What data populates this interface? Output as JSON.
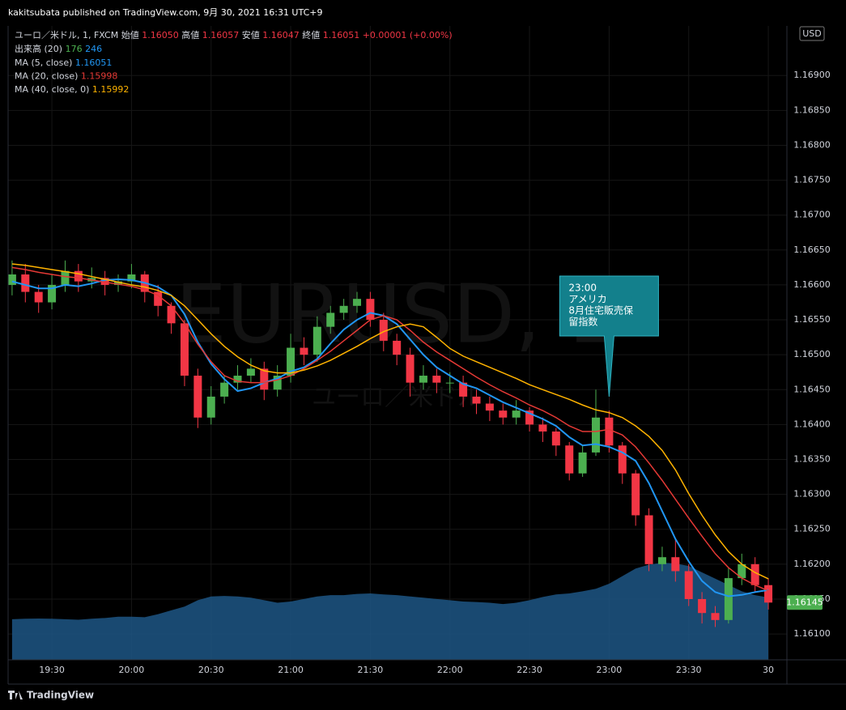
{
  "header": {
    "text": "kakitsubata published on TradingView.com, 9月 30, 2021 16:31 UTC+9"
  },
  "footer": {
    "brand": "TradingView"
  },
  "chart_data": {
    "type": "candlestick",
    "legend": {
      "symbol": "ユーロ／米ドル, 1, FXCM",
      "items": [
        {
          "label": "始値",
          "value": "1.16050"
        },
        {
          "label": "高値",
          "value": "1.16057"
        },
        {
          "label": "安値",
          "value": "1.16047"
        },
        {
          "label": "終値",
          "value": "1.16051"
        }
      ],
      "change": "+0.00001 (+0.00%)"
    },
    "watermark": "EURUSD, 1",
    "watermark_sub": "ユーロ／米ドル",
    "currency": "USD",
    "x": [
      1155,
      1160,
      1165,
      1170,
      1175,
      1180,
      1185,
      1190,
      1195,
      1200,
      1205,
      1210,
      1215,
      1220,
      1225,
      1230,
      1235,
      1240,
      1245,
      1250,
      1255,
      1260,
      1265,
      1270,
      1275,
      1280,
      1285,
      1290,
      1295,
      1300,
      1305,
      1310,
      1315,
      1320,
      1325,
      1330,
      1335,
      1340,
      1345,
      1350,
      1355,
      1360,
      1365,
      1370,
      1375,
      1380,
      1385,
      1390,
      1395,
      1400,
      1405,
      1410,
      1415,
      1420,
      1425,
      1430,
      1435,
      1440
    ],
    "open": [
      1.166,
      1.16615,
      1.1659,
      1.16575,
      1.166,
      1.1662,
      1.16605,
      1.1661,
      1.166,
      1.16605,
      1.16615,
      1.1659,
      1.1657,
      1.16545,
      1.1647,
      1.1641,
      1.1644,
      1.1646,
      1.1647,
      1.1648,
      1.1645,
      1.1647,
      1.1651,
      1.165,
      1.1654,
      1.1656,
      1.1657,
      1.1658,
      1.1655,
      1.1652,
      1.165,
      1.1646,
      1.1647,
      1.1646,
      1.1646,
      1.1644,
      1.1643,
      1.1642,
      1.1641,
      1.1642,
      1.164,
      1.1639,
      1.1637,
      1.1633,
      1.1636,
      1.1641,
      1.1637,
      1.1633,
      1.1627,
      1.162,
      1.1621,
      1.1619,
      1.1615,
      1.1613,
      1.1612,
      1.1618,
      1.162,
      1.1617
    ],
    "high": [
      1.16635,
      1.1663,
      1.166,
      1.16615,
      1.16635,
      1.1663,
      1.16625,
      1.1662,
      1.16615,
      1.1663,
      1.1662,
      1.166,
      1.16575,
      1.1655,
      1.1648,
      1.16455,
      1.1647,
      1.16485,
      1.16495,
      1.1649,
      1.16485,
      1.1653,
      1.16525,
      1.16555,
      1.1657,
      1.1658,
      1.1659,
      1.1659,
      1.1656,
      1.1653,
      1.1651,
      1.16485,
      1.1648,
      1.16475,
      1.1647,
      1.1645,
      1.1644,
      1.1643,
      1.16435,
      1.16425,
      1.1641,
      1.16395,
      1.16375,
      1.1637,
      1.1645,
      1.1642,
      1.16375,
      1.16335,
      1.1628,
      1.16225,
      1.16235,
      1.162,
      1.1616,
      1.1614,
      1.16195,
      1.16215,
      1.1621,
      1.1618
    ],
    "low": [
      1.16585,
      1.16575,
      1.1656,
      1.16565,
      1.1659,
      1.1659,
      1.16595,
      1.16585,
      1.1659,
      1.16595,
      1.16575,
      1.16555,
      1.1653,
      1.16455,
      1.16395,
      1.164,
      1.1643,
      1.1645,
      1.1646,
      1.16435,
      1.1644,
      1.1646,
      1.16485,
      1.1649,
      1.1653,
      1.1655,
      1.1656,
      1.1654,
      1.16505,
      1.16485,
      1.1644,
      1.1645,
      1.16445,
      1.16445,
      1.16425,
      1.16415,
      1.16405,
      1.164,
      1.164,
      1.1639,
      1.16375,
      1.16355,
      1.1632,
      1.16325,
      1.16355,
      1.1636,
      1.16315,
      1.16255,
      1.1619,
      1.1619,
      1.16175,
      1.1614,
      1.16115,
      1.1611,
      1.16115,
      1.1617,
      1.1616,
      1.16135
    ],
    "close": [
      1.16615,
      1.1659,
      1.16575,
      1.166,
      1.1662,
      1.16605,
      1.1661,
      1.166,
      1.16605,
      1.16615,
      1.1659,
      1.1657,
      1.16545,
      1.1647,
      1.1641,
      1.1644,
      1.1646,
      1.1647,
      1.1648,
      1.1645,
      1.1647,
      1.1651,
      1.165,
      1.1654,
      1.1656,
      1.1657,
      1.1658,
      1.1655,
      1.1652,
      1.165,
      1.1646,
      1.1647,
      1.1646,
      1.1646,
      1.1644,
      1.1643,
      1.1642,
      1.1641,
      1.1642,
      1.164,
      1.1639,
      1.1637,
      1.1633,
      1.1636,
      1.1641,
      1.1637,
      1.1633,
      1.1627,
      1.162,
      1.1621,
      1.1619,
      1.1615,
      1.1613,
      1.1612,
      1.1618,
      1.162,
      1.1617,
      1.16145
    ],
    "up_color": "#4caf50",
    "down_color": "#f23645",
    "series": [
      {
        "name": "MA (5, close)",
        "legend_value": "1.16051",
        "color": "#2196f3",
        "values": [
          1.16605,
          1.166,
          1.16595,
          1.16595,
          1.166,
          1.16598,
          1.16602,
          1.16607,
          1.16608,
          1.16607,
          1.16603,
          1.16597,
          1.16585,
          1.16558,
          1.16518,
          1.16487,
          1.16465,
          1.16448,
          1.16452,
          1.1646,
          1.16466,
          1.16476,
          1.16482,
          1.16494,
          1.16516,
          1.16536,
          1.1655,
          1.1656,
          1.16556,
          1.16544,
          1.16522,
          1.165,
          1.16482,
          1.1647,
          1.16458,
          1.16452,
          1.16442,
          1.16432,
          1.16424,
          1.16416,
          1.16408,
          1.16398,
          1.16382,
          1.1637,
          1.16372,
          1.16368,
          1.1636,
          1.16348,
          1.16316,
          1.16276,
          1.16236,
          1.16204,
          1.16176,
          1.1616,
          1.16154,
          1.16156,
          1.1616,
          1.16163
        ]
      },
      {
        "name": "MA (20, close)",
        "legend_value": "1.15998",
        "color": "#e53935",
        "values": [
          1.16625,
          1.16622,
          1.16618,
          1.16615,
          1.16612,
          1.1661,
          1.16607,
          1.16604,
          1.16601,
          1.16598,
          1.16593,
          1.16585,
          1.1657,
          1.16545,
          1.16515,
          1.1649,
          1.1647,
          1.16462,
          1.1646,
          1.1646,
          1.16464,
          1.1647,
          1.1648,
          1.16492,
          1.16505,
          1.1652,
          1.16535,
          1.1655,
          1.16556,
          1.1655,
          1.16535,
          1.16518,
          1.16504,
          1.16492,
          1.1648,
          1.16468,
          1.16457,
          1.16447,
          1.16438,
          1.16428,
          1.1642,
          1.1641,
          1.16398,
          1.1639,
          1.1639,
          1.16393,
          1.16385,
          1.16368,
          1.16345,
          1.1632,
          1.16293,
          1.16266,
          1.1624,
          1.16215,
          1.16195,
          1.1618,
          1.1617,
          1.16162
        ]
      },
      {
        "name": "MA (40, close, 0)",
        "legend_value": "1.15992",
        "color": "#ffb300",
        "values": [
          1.1663,
          1.16628,
          1.16625,
          1.16622,
          1.16619,
          1.16616,
          1.16612,
          1.16608,
          1.16604,
          1.166,
          1.16597,
          1.16592,
          1.16585,
          1.1657,
          1.1655,
          1.1653,
          1.16512,
          1.16497,
          1.16485,
          1.16477,
          1.16474,
          1.16474,
          1.16478,
          1.16484,
          1.16492,
          1.16502,
          1.16512,
          1.16523,
          1.16533,
          1.1654,
          1.16544,
          1.1654,
          1.16525,
          1.16509,
          1.16498,
          1.1649,
          1.16482,
          1.16474,
          1.16466,
          1.16457,
          1.1645,
          1.16443,
          1.16436,
          1.16428,
          1.16421,
          1.16417,
          1.1641,
          1.16398,
          1.16383,
          1.16363,
          1.16335,
          1.16301,
          1.1627,
          1.16242,
          1.16218,
          1.162,
          1.16188,
          1.16179
        ]
      }
    ],
    "volume": {
      "name": "出来高 (20)",
      "legend_values": [
        "176",
        "246"
      ],
      "legend_colors": [
        "#4caf50",
        "#2196f3"
      ],
      "color": "#1d5685",
      "lim": [
        0,
        2500
      ],
      "values": [
        160,
        162,
        163,
        162,
        160,
        158,
        162,
        165,
        170,
        170,
        168,
        180,
        195,
        210,
        235,
        250,
        252,
        250,
        245,
        235,
        225,
        230,
        240,
        250,
        255,
        255,
        260,
        262,
        258,
        255,
        250,
        245,
        240,
        235,
        230,
        228,
        225,
        220,
        225,
        235,
        248,
        258,
        262,
        270,
        280,
        300,
        330,
        360,
        375,
        383,
        380,
        370,
        345,
        320,
        295,
        270,
        255,
        246
      ]
    },
    "xlim": [
      1153.5,
      1447
    ],
    "xticks": [
      {
        "value": 1170,
        "label": "19:30"
      },
      {
        "value": 1200,
        "label": "20:00"
      },
      {
        "value": 1230,
        "label": "20:30"
      },
      {
        "value": 1260,
        "label": "21:00"
      },
      {
        "value": 1290,
        "label": "21:30"
      },
      {
        "value": 1320,
        "label": "22:00"
      },
      {
        "value": 1350,
        "label": "22:30"
      },
      {
        "value": 1380,
        "label": "23:00"
      },
      {
        "value": 1410,
        "label": "23:30"
      },
      {
        "value": 1440,
        "label": "30"
      }
    ],
    "ylim": [
      1.16063,
      1.16971
    ],
    "yticks": [
      {
        "value": 1.161,
        "label": "1.16100"
      },
      {
        "value": 1.1615,
        "label": "1.16150"
      },
      {
        "value": 1.162,
        "label": "1.16200"
      },
      {
        "value": 1.1625,
        "label": "1.16250"
      },
      {
        "value": 1.163,
        "label": "1.16300"
      },
      {
        "value": 1.1635,
        "label": "1.16350"
      },
      {
        "value": 1.164,
        "label": "1.16400"
      },
      {
        "value": 1.1645,
        "label": "1.16450"
      },
      {
        "value": 1.165,
        "label": "1.16500"
      },
      {
        "value": 1.1655,
        "label": "1.16550"
      },
      {
        "value": 1.166,
        "label": "1.16600"
      },
      {
        "value": 1.1665,
        "label": "1.16650"
      },
      {
        "value": 1.167,
        "label": "1.16700"
      },
      {
        "value": 1.1675,
        "label": "1.16750"
      },
      {
        "value": 1.168,
        "label": "1.16800"
      },
      {
        "value": 1.1685,
        "label": "1.16850"
      },
      {
        "value": 1.169,
        "label": "1.16900"
      }
    ],
    "grid": true,
    "last_price_color": "#4caf50",
    "annotation": {
      "x": 1380,
      "price": 1.1644,
      "lines": [
        "23:00",
        "アメリカ",
        "8月住宅販売保",
        "留指数"
      ],
      "color": "#13808c"
    }
  }
}
